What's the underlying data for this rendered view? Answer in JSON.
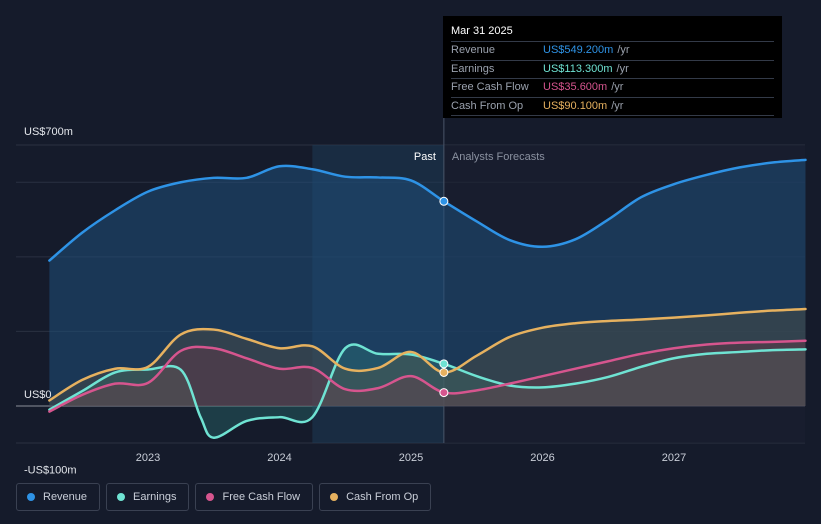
{
  "tooltip": {
    "date": "Mar 31 2025",
    "rows": [
      {
        "label": "Revenue",
        "value": "US$549.200m",
        "unit": "/yr",
        "color": "#2e93e6"
      },
      {
        "label": "Earnings",
        "value": "US$113.300m",
        "unit": "/yr",
        "color": "#6fe3d3"
      },
      {
        "label": "Free Cash Flow",
        "value": "US$35.600m",
        "unit": "/yr",
        "color": "#d6558e"
      },
      {
        "label": "Cash From Op",
        "value": "US$90.100m",
        "unit": "/yr",
        "color": "#e6b15f"
      }
    ]
  },
  "legend": [
    {
      "label": "Revenue",
      "color": "#2e93e6"
    },
    {
      "label": "Earnings",
      "color": "#6fe3d3"
    },
    {
      "label": "Free Cash Flow",
      "color": "#d6558e"
    },
    {
      "label": "Cash From Op",
      "color": "#e6b15f"
    }
  ],
  "chart_data": {
    "type": "line",
    "y_axis_labels": [
      "US$700m",
      "US$0",
      "-US$100m"
    ],
    "ylim": [
      -100,
      700
    ],
    "x_ticks": [
      {
        "label": "2023",
        "x": 2023.0
      },
      {
        "label": "2024",
        "x": 2024.0
      },
      {
        "label": "2025",
        "x": 2025.0
      },
      {
        "label": "2026",
        "x": 2026.0
      },
      {
        "label": "2027",
        "x": 2027.0
      }
    ],
    "xlim": [
      2022.0,
      2028.0
    ],
    "past_label": "Past",
    "forecast_label": "Analysts Forecasts",
    "divider_x": 2025.25,
    "highlight_range": [
      2024.25,
      2025.25
    ],
    "series": [
      {
        "name": "Revenue",
        "color": "#2e93e6",
        "x": [
          2022.25,
          2022.5,
          2022.75,
          2023.0,
          2023.25,
          2023.5,
          2023.75,
          2024.0,
          2024.25,
          2024.5,
          2024.75,
          2025.0,
          2025.25,
          2025.5,
          2025.75,
          2026.0,
          2026.25,
          2026.5,
          2026.75,
          2027.0,
          2027.25,
          2027.5,
          2027.75,
          2028.0
        ],
        "values": [
          390,
          465,
          525,
          575,
          600,
          612,
          612,
          643,
          635,
          615,
          613,
          605,
          549,
          495,
          445,
          427,
          447,
          500,
          560,
          595,
          620,
          640,
          653,
          660
        ]
      },
      {
        "name": "Earnings",
        "color": "#6fe3d3",
        "x": [
          2022.25,
          2022.5,
          2022.75,
          2023.0,
          2023.25,
          2023.4,
          2023.5,
          2023.75,
          2024.0,
          2024.25,
          2024.5,
          2024.75,
          2025.0,
          2025.25,
          2025.5,
          2025.75,
          2026.0,
          2026.25,
          2026.5,
          2026.75,
          2027.0,
          2027.25,
          2027.5,
          2027.75,
          2028.0
        ],
        "values": [
          -10,
          40,
          90,
          98,
          97,
          -30,
          -85,
          -40,
          -30,
          -30,
          155,
          140,
          138,
          113,
          80,
          55,
          50,
          60,
          78,
          105,
          128,
          140,
          145,
          150,
          152
        ]
      },
      {
        "name": "Free Cash Flow",
        "color": "#d6558e",
        "x": [
          2022.25,
          2022.5,
          2022.75,
          2023.0,
          2023.25,
          2023.5,
          2023.75,
          2024.0,
          2024.25,
          2024.5,
          2024.75,
          2025.0,
          2025.25,
          2025.5,
          2025.75,
          2026.0,
          2026.25,
          2026.5,
          2026.75,
          2027.0,
          2027.25,
          2027.5,
          2027.75,
          2028.0
        ],
        "values": [
          -15,
          30,
          60,
          62,
          148,
          155,
          128,
          100,
          102,
          45,
          48,
          80,
          36,
          42,
          60,
          80,
          100,
          120,
          140,
          155,
          165,
          170,
          172,
          175
        ]
      },
      {
        "name": "Cash From Op",
        "color": "#e6b15f",
        "x": [
          2022.25,
          2022.5,
          2022.75,
          2023.0,
          2023.25,
          2023.5,
          2023.75,
          2024.0,
          2024.25,
          2024.5,
          2024.75,
          2025.0,
          2025.25,
          2025.5,
          2025.75,
          2026.0,
          2026.25,
          2026.5,
          2026.75,
          2027.0,
          2027.25,
          2027.5,
          2027.75,
          2028.0
        ],
        "values": [
          15,
          70,
          100,
          105,
          192,
          205,
          180,
          155,
          160,
          100,
          102,
          145,
          90,
          135,
          185,
          210,
          222,
          228,
          232,
          237,
          243,
          250,
          256,
          260
        ]
      }
    ]
  }
}
